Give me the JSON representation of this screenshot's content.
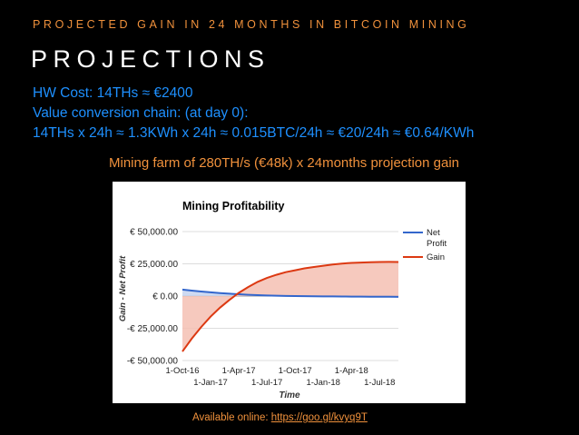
{
  "slide": {
    "subtitle": "PROJECTED GAIN IN 24 MONTHS IN BITCOIN MINING",
    "title": "PROJECTIONS",
    "hw_cost": "HW Cost: 14THs ≈ €2400",
    "value_chain_intro": "Value conversion chain: (at day 0):",
    "value_chain": "14THs x 24h ≈ 1.3KWh x 24h ≈ 0.015BTC/24h ≈ €20/24h ≈ €0.64/KWh",
    "farm_caption": "Mining farm of 280TH/s (€48k) x 24months projection gain",
    "footer_prefix": "Available online: ",
    "footer_link": "https://goo.gl/kvyq9T"
  },
  "colors": {
    "net_profit": "#3366cc",
    "gain": "#dc3912",
    "gain_fill": "#f5c0b3",
    "accent_orange": "#f0913c",
    "accent_blue": "#1e90ff"
  },
  "chart_data": {
    "type": "area",
    "title": "Mining Profitability",
    "xlabel": "Time",
    "ylabel": "Gain - Net Profit",
    "y_ticks": [
      "€ 50,000.00",
      "€ 25,000.00",
      "€ 0.00",
      "-€ 25,000.00",
      "-€ 50,000.00"
    ],
    "y_tick_values": [
      50000,
      25000,
      0,
      -25000,
      -50000
    ],
    "ylim": [
      -50000,
      50000
    ],
    "x_ticks_top": [
      "1-Oct-16",
      "1-Apr-17",
      "1-Oct-17",
      "1-Apr-18"
    ],
    "x_ticks_bottom": [
      "1-Jan-17",
      "1-Jul-17",
      "1-Jan-18",
      "1-Jul-18"
    ],
    "x_tick_order": [
      "1-Oct-16",
      "1-Jan-17",
      "1-Apr-17",
      "1-Jul-17",
      "1-Oct-17",
      "1-Jan-18",
      "1-Apr-18",
      "1-Jul-18"
    ],
    "x": [
      "1-Oct-16",
      "1-Nov-16",
      "1-Dec-16",
      "1-Jan-17",
      "1-Feb-17",
      "1-Mar-17",
      "1-Apr-17",
      "1-May-17",
      "1-Jun-17",
      "1-Jul-17",
      "1-Aug-17",
      "1-Sep-17",
      "1-Oct-17",
      "1-Nov-17",
      "1-Dec-17",
      "1-Jan-18",
      "1-Feb-18",
      "1-Mar-18",
      "1-Apr-18",
      "1-May-18",
      "1-Jun-18",
      "1-Jul-18",
      "1-Aug-18",
      "1-Sep-18"
    ],
    "series": [
      {
        "name": "Net Profit",
        "values": [
          5000,
          4200,
          3500,
          2900,
          2300,
          1800,
          1400,
          1000,
          700,
          450,
          250,
          100,
          0,
          -100,
          -200,
          -250,
          -300,
          -350,
          -400,
          -450,
          -500,
          -550,
          -580,
          -600
        ]
      },
      {
        "name": "Gain",
        "values": [
          -43000,
          -33000,
          -24000,
          -16000,
          -9000,
          -3000,
          2500,
          7000,
          11000,
          14000,
          16500,
          18500,
          20000,
          21500,
          22500,
          23500,
          24500,
          25200,
          25700,
          26000,
          26200,
          26400,
          26500,
          26400
        ]
      }
    ],
    "legend": "right",
    "grid": true
  }
}
